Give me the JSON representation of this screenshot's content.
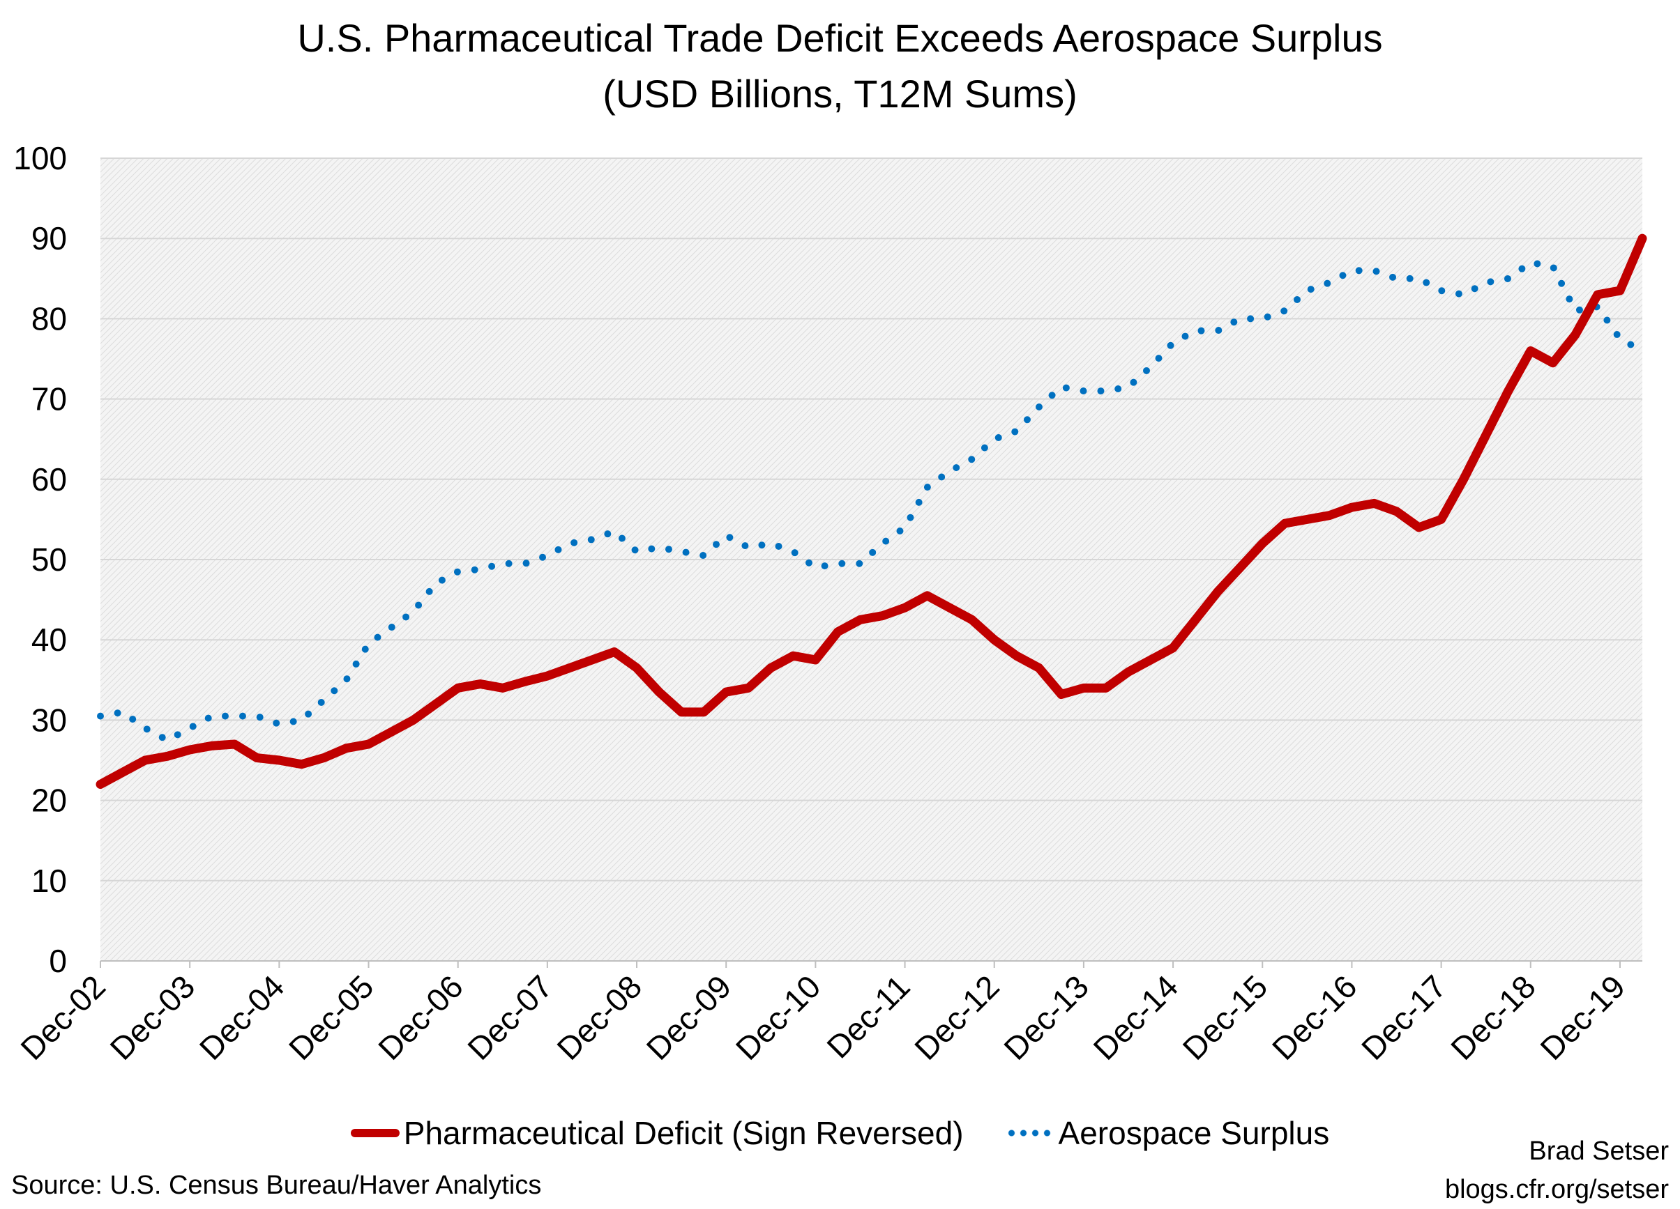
{
  "chart_data": {
    "type": "line",
    "title": "U.S. Pharmaceutical Trade Deficit Exceeds Aerospace Surplus",
    "subtitle": "(USD Billions, T12M Sums)",
    "ylim": [
      0,
      100
    ],
    "yticks": [
      0,
      10,
      20,
      30,
      40,
      50,
      60,
      70,
      80,
      90,
      100
    ],
    "xtick_labels": [
      "Dec-02",
      "Dec-03",
      "Dec-04",
      "Dec-05",
      "Dec-06",
      "Dec-07",
      "Dec-08",
      "Dec-09",
      "Dec-10",
      "Dec-11",
      "Dec-12",
      "Dec-13",
      "Dec-14",
      "Dec-15",
      "Dec-16",
      "Dec-17",
      "Dec-18",
      "Dec-19"
    ],
    "grid": "horizontal",
    "legend": "bottom",
    "x": [
      "Dec-02",
      "Mar-03",
      "Jun-03",
      "Sep-03",
      "Dec-03",
      "Mar-04",
      "Jun-04",
      "Sep-04",
      "Dec-04",
      "Mar-05",
      "Jun-05",
      "Sep-05",
      "Dec-05",
      "Mar-06",
      "Jun-06",
      "Sep-06",
      "Dec-06",
      "Mar-07",
      "Jun-07",
      "Sep-07",
      "Dec-07",
      "Mar-08",
      "Jun-08",
      "Sep-08",
      "Dec-08",
      "Mar-09",
      "Jun-09",
      "Sep-09",
      "Dec-09",
      "Mar-10",
      "Jun-10",
      "Sep-10",
      "Dec-10",
      "Mar-11",
      "Jun-11",
      "Sep-11",
      "Dec-11",
      "Mar-12",
      "Jun-12",
      "Sep-12",
      "Dec-12",
      "Mar-13",
      "Jun-13",
      "Sep-13",
      "Dec-13",
      "Mar-14",
      "Jun-14",
      "Sep-14",
      "Dec-14",
      "Mar-15",
      "Jun-15",
      "Sep-15",
      "Dec-15",
      "Mar-16",
      "Jun-16",
      "Sep-16",
      "Dec-16",
      "Mar-17",
      "Jun-17",
      "Sep-17",
      "Dec-17",
      "Mar-18",
      "Jun-18",
      "Sep-18",
      "Dec-18",
      "Mar-19",
      "Jun-19",
      "Sep-19",
      "Dec-19",
      "Mar-20"
    ],
    "series": [
      {
        "name": "Pharmaceutical Deficit (Sign Reversed)",
        "color": "#c00000",
        "style": "solid",
        "values": [
          22,
          23.5,
          25,
          25.5,
          26.3,
          26.8,
          27,
          25.3,
          25,
          24.5,
          25.3,
          26.5,
          27,
          28.5,
          30,
          32,
          34,
          34.5,
          34,
          34.8,
          35.5,
          36.5,
          37.5,
          38.5,
          36.5,
          33.5,
          31,
          31,
          33.5,
          34,
          36.5,
          38,
          37.5,
          41,
          42.5,
          43,
          44,
          45.5,
          44,
          42.5,
          40,
          38,
          36.5,
          33.2,
          34,
          34,
          36,
          37.5,
          39,
          42.5,
          46,
          49,
          52,
          54.5,
          55,
          55.5,
          56.5,
          57,
          56,
          54,
          55,
          60,
          65.5,
          71,
          76,
          74.5,
          78,
          83,
          83.5,
          90
        ]
      },
      {
        "name": "Aerospace Surplus",
        "color": "#0070c0",
        "style": "dotted",
        "values": [
          30.5,
          31,
          29,
          27.5,
          29,
          30.5,
          30.5,
          30.5,
          29.5,
          30,
          32.5,
          35,
          39.5,
          41.5,
          43.5,
          47,
          48.5,
          48.8,
          49.5,
          49.5,
          50.5,
          52,
          52.5,
          53.5,
          51,
          51.5,
          51,
          50.5,
          53,
          51.5,
          52,
          51,
          49,
          49.5,
          49.5,
          52,
          54,
          59,
          61,
          62.5,
          65,
          66,
          69,
          71.5,
          71,
          71,
          71.5,
          74,
          77,
          78.5,
          78.5,
          80,
          80,
          81,
          83.5,
          84.5,
          86,
          86,
          85,
          85,
          83.5,
          83,
          84.5,
          85,
          87,
          86.5,
          81,
          81.5,
          77.5,
          76
        ]
      }
    ]
  },
  "source": "Source: U.S. Census Bureau/Haver Analytics",
  "credit": {
    "author": "Brad Setser",
    "site": "blogs.cfr.org/setser"
  }
}
